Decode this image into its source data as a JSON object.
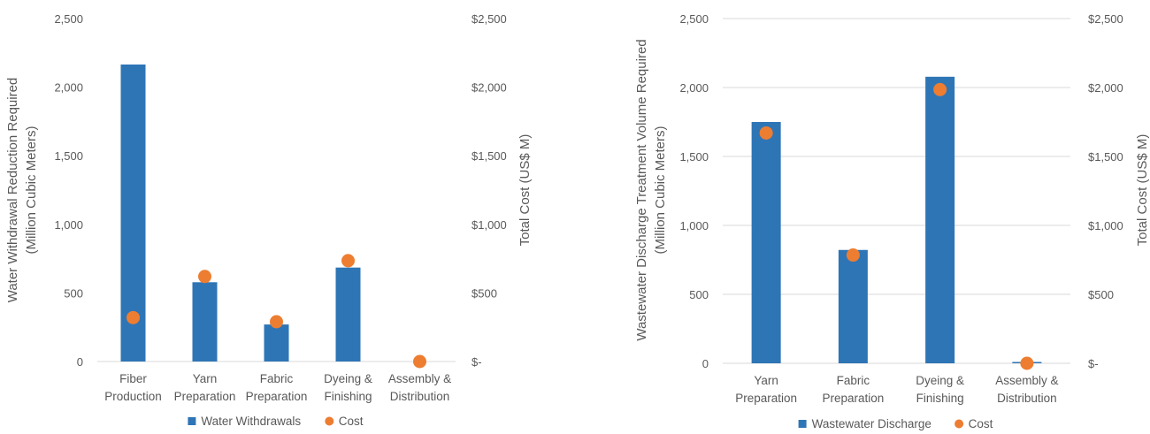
{
  "colors": {
    "bar": "#2E75B6",
    "point": "#ED7D31",
    "grid": "#D9D9D9",
    "text": "#595959"
  },
  "chart_data": [
    {
      "type": "bar",
      "categories": [
        [
          "Fiber",
          "Production"
        ],
        [
          "Yarn",
          "Preparation"
        ],
        [
          "Fabric",
          "Preparation"
        ],
        [
          "Dyeing &",
          "Finishing"
        ],
        [
          "Assembly &",
          "Distribution"
        ]
      ],
      "series": [
        {
          "name": "Water Withdrawals",
          "type": "bar",
          "axis": "left",
          "values": [
            2165,
            578,
            270,
            685,
            0
          ]
        },
        {
          "name": "Cost",
          "type": "scatter",
          "axis": "right",
          "values": [
            320,
            620,
            290,
            735,
            0
          ]
        }
      ],
      "ylabel_left": [
        "Water Withdrawal Reduction Required",
        "(Million Cubic Meters)"
      ],
      "ylabel_right": "Total Cost (US$ M)",
      "ylim_left": [
        0,
        2500
      ],
      "ylim_right": [
        0,
        2500
      ],
      "yticks_left": [
        "0",
        "500",
        "1,000",
        "1,500",
        "2,000",
        "2,500"
      ],
      "yticks_right": [
        "$-",
        "$500",
        "$1,000",
        "$1,500",
        "$2,000",
        "$2,500"
      ],
      "grid": false,
      "legend": "bottom"
    },
    {
      "type": "bar",
      "categories": [
        [
          "Yarn",
          "Preparation"
        ],
        [
          "Fabric",
          "Preparation"
        ],
        [
          "Dyeing &",
          "Finishing"
        ],
        [
          "Assembly &",
          "Distribution"
        ]
      ],
      "series": [
        {
          "name": "Wastewater Discharge",
          "type": "bar",
          "axis": "left",
          "values": [
            1750,
            822,
            2078,
            5
          ]
        },
        {
          "name": "Cost",
          "type": "scatter",
          "axis": "right",
          "values": [
            1670,
            785,
            1985,
            0
          ]
        }
      ],
      "ylabel_left": [
        "Wastewater Discharge Treatment Volume Required",
        "(Million Cubic Meters)"
      ],
      "ylabel_right": "Total Cost (US$ M)",
      "ylim_left": [
        0,
        2500
      ],
      "ylim_right": [
        0,
        2500
      ],
      "yticks_left": [
        "0",
        "500",
        "1,000",
        "1,500",
        "2,000",
        "2,500"
      ],
      "yticks_right": [
        "$-",
        "$500",
        "$1,000",
        "$1,500",
        "$2,000",
        "$2,500"
      ],
      "grid": true,
      "legend": "bottom"
    }
  ]
}
